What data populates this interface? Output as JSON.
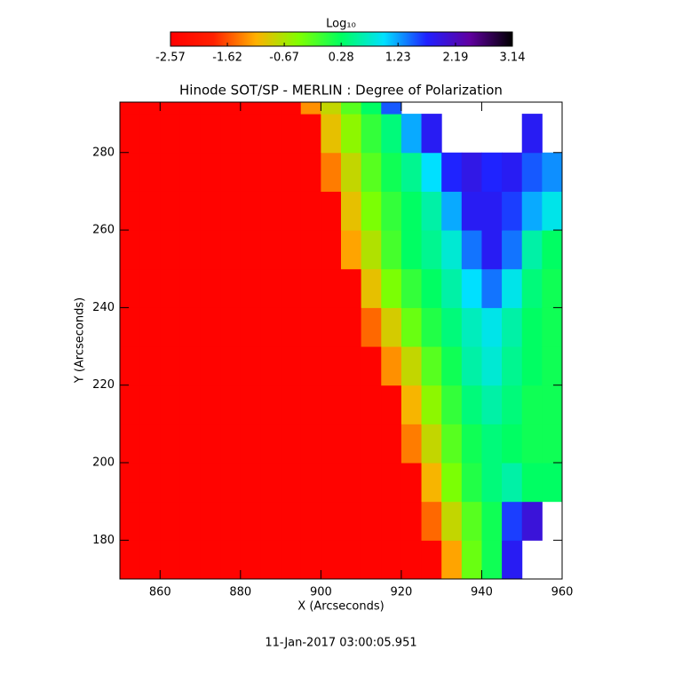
{
  "chart_data": {
    "type": "heatmap",
    "title": "Hinode SOT/SP - MERLIN : Degree of Polarization",
    "xlabel": "X (Arcseconds)",
    "ylabel": "Y (Arcseconds)",
    "footer": "11-Jan-2017 03:00:05.951",
    "x": [
      852.5,
      857.5,
      862.5,
      867.5,
      872.5,
      877.5,
      882.5,
      887.5,
      892.5,
      897.5,
      902.5,
      907.5,
      912.5,
      917.5,
      922.5,
      927.5,
      932.5,
      937.5,
      942.5,
      947.5,
      952.5,
      957.5
    ],
    "y": [
      175,
      185,
      195,
      205,
      215,
      225,
      235,
      245,
      255,
      265,
      275,
      285,
      295
    ],
    "z": [
      [
        -2.5,
        -2.5,
        -2.5,
        -2.5,
        -2.5,
        -2.5,
        -2.5,
        -2.5,
        -2.5,
        -2.5,
        -2.5,
        -2.5,
        -2.5,
        -2.5,
        -2.5,
        -2.5,
        -1.2,
        -0.3,
        0.2,
        1.8,
        null,
        null
      ],
      [
        -2.5,
        -2.5,
        -2.5,
        -2.5,
        -2.5,
        -2.5,
        -2.5,
        -2.5,
        -2.5,
        -2.5,
        -2.5,
        -2.5,
        -2.5,
        -2.5,
        -2.5,
        -1.5,
        -0.8,
        -0.2,
        0.2,
        1.6,
        2.0,
        null
      ],
      [
        -2.5,
        -2.5,
        -2.5,
        -2.5,
        -2.5,
        -2.5,
        -2.5,
        -2.5,
        -2.5,
        -2.5,
        -2.5,
        -2.5,
        -2.5,
        -2.5,
        -2.5,
        -1.1,
        -0.4,
        0.1,
        0.4,
        0.6,
        0.3,
        0.3
      ],
      [
        -2.5,
        -2.5,
        -2.5,
        -2.5,
        -2.5,
        -2.5,
        -2.5,
        -2.5,
        -2.5,
        -2.5,
        -2.5,
        -2.5,
        -2.5,
        -2.5,
        -1.4,
        -0.8,
        -0.2,
        0.2,
        0.4,
        0.3,
        0.2,
        0.2
      ],
      [
        -2.5,
        -2.5,
        -2.5,
        -2.5,
        -2.5,
        -2.5,
        -2.5,
        -2.5,
        -2.5,
        -2.5,
        -2.5,
        -2.5,
        -2.5,
        -2.5,
        -1.1,
        -0.5,
        0,
        0.4,
        0.6,
        0.4,
        0.2,
        0.2
      ],
      [
        -2.5,
        -2.5,
        -2.5,
        -2.5,
        -2.5,
        -2.5,
        -2.5,
        -2.5,
        -2.5,
        -2.5,
        -2.5,
        -2.5,
        -2.5,
        -1.3,
        -0.8,
        -0.2,
        0.2,
        0.6,
        0.8,
        0.5,
        0.3,
        0.2
      ],
      [
        -2.5,
        -2.5,
        -2.5,
        -2.5,
        -2.5,
        -2.5,
        -2.5,
        -2.5,
        -2.5,
        -2.5,
        -2.5,
        -2.5,
        -1.5,
        -0.9,
        -0.3,
        0.1,
        0.4,
        0.7,
        0.9,
        0.6,
        0.3,
        0.2
      ],
      [
        -2.5,
        -2.5,
        -2.5,
        -2.5,
        -2.5,
        -2.5,
        -2.5,
        -2.5,
        -2.5,
        -2.5,
        -2.5,
        -2.5,
        -1.0,
        -0.4,
        0,
        0.3,
        0.6,
        1.0,
        1.4,
        0.9,
        0.4,
        0.2
      ],
      [
        -2.5,
        -2.5,
        -2.5,
        -2.5,
        -2.5,
        -2.5,
        -2.5,
        -2.5,
        -2.5,
        -2.5,
        -2.5,
        -1.2,
        -0.7,
        -0.1,
        0.3,
        0.5,
        0.8,
        1.4,
        1.8,
        1.4,
        0.6,
        0.3
      ],
      [
        -2.5,
        -2.5,
        -2.5,
        -2.5,
        -2.5,
        -2.5,
        -2.5,
        -2.5,
        -2.5,
        -2.5,
        -2.5,
        -1.0,
        -0.4,
        0,
        0.3,
        0.6,
        1.2,
        1.8,
        1.8,
        1.6,
        1.2,
        0.9
      ],
      [
        -2.5,
        -2.5,
        -2.5,
        -2.5,
        -2.5,
        -2.5,
        -2.5,
        -2.5,
        -2.5,
        -2.5,
        -1.4,
        -0.8,
        -0.2,
        0.2,
        0.5,
        1.0,
        1.7,
        1.9,
        1.7,
        1.8,
        1.5,
        1.3
      ],
      [
        -2.5,
        -2.5,
        -2.5,
        -2.5,
        -2.5,
        -2.5,
        -2.5,
        -2.5,
        -2.5,
        -2.5,
        -1.0,
        -0.5,
        0,
        0.4,
        1.2,
        1.8,
        null,
        null,
        null,
        null,
        1.8,
        null
      ],
      [
        -2.5,
        -2.5,
        -2.5,
        -2.5,
        -2.5,
        -2.5,
        -2.5,
        -2.5,
        -2.5,
        -1.3,
        -0.8,
        -0.2,
        0.3,
        1.5,
        null,
        null,
        null,
        null,
        null,
        null,
        null,
        null
      ]
    ],
    "xlim": [
      850,
      960
    ],
    "ylim": [
      170,
      293
    ],
    "xticks": [
      860,
      880,
      900,
      920,
      940,
      960
    ],
    "yticks": [
      180,
      200,
      220,
      240,
      260,
      280
    ],
    "colorbar": {
      "label": "Log₁₀",
      "range": [
        -2.57,
        3.14
      ],
      "ticks": [
        -2.57,
        -1.62,
        -0.67,
        0.28,
        1.23,
        2.19,
        3.14
      ]
    },
    "colormap": [
      "#ff0000",
      "#ff2000",
      "#ffb000",
      "#80ff00",
      "#00ff60",
      "#00e0ff",
      "#2020ff",
      "#6000a0",
      "#000000"
    ]
  }
}
